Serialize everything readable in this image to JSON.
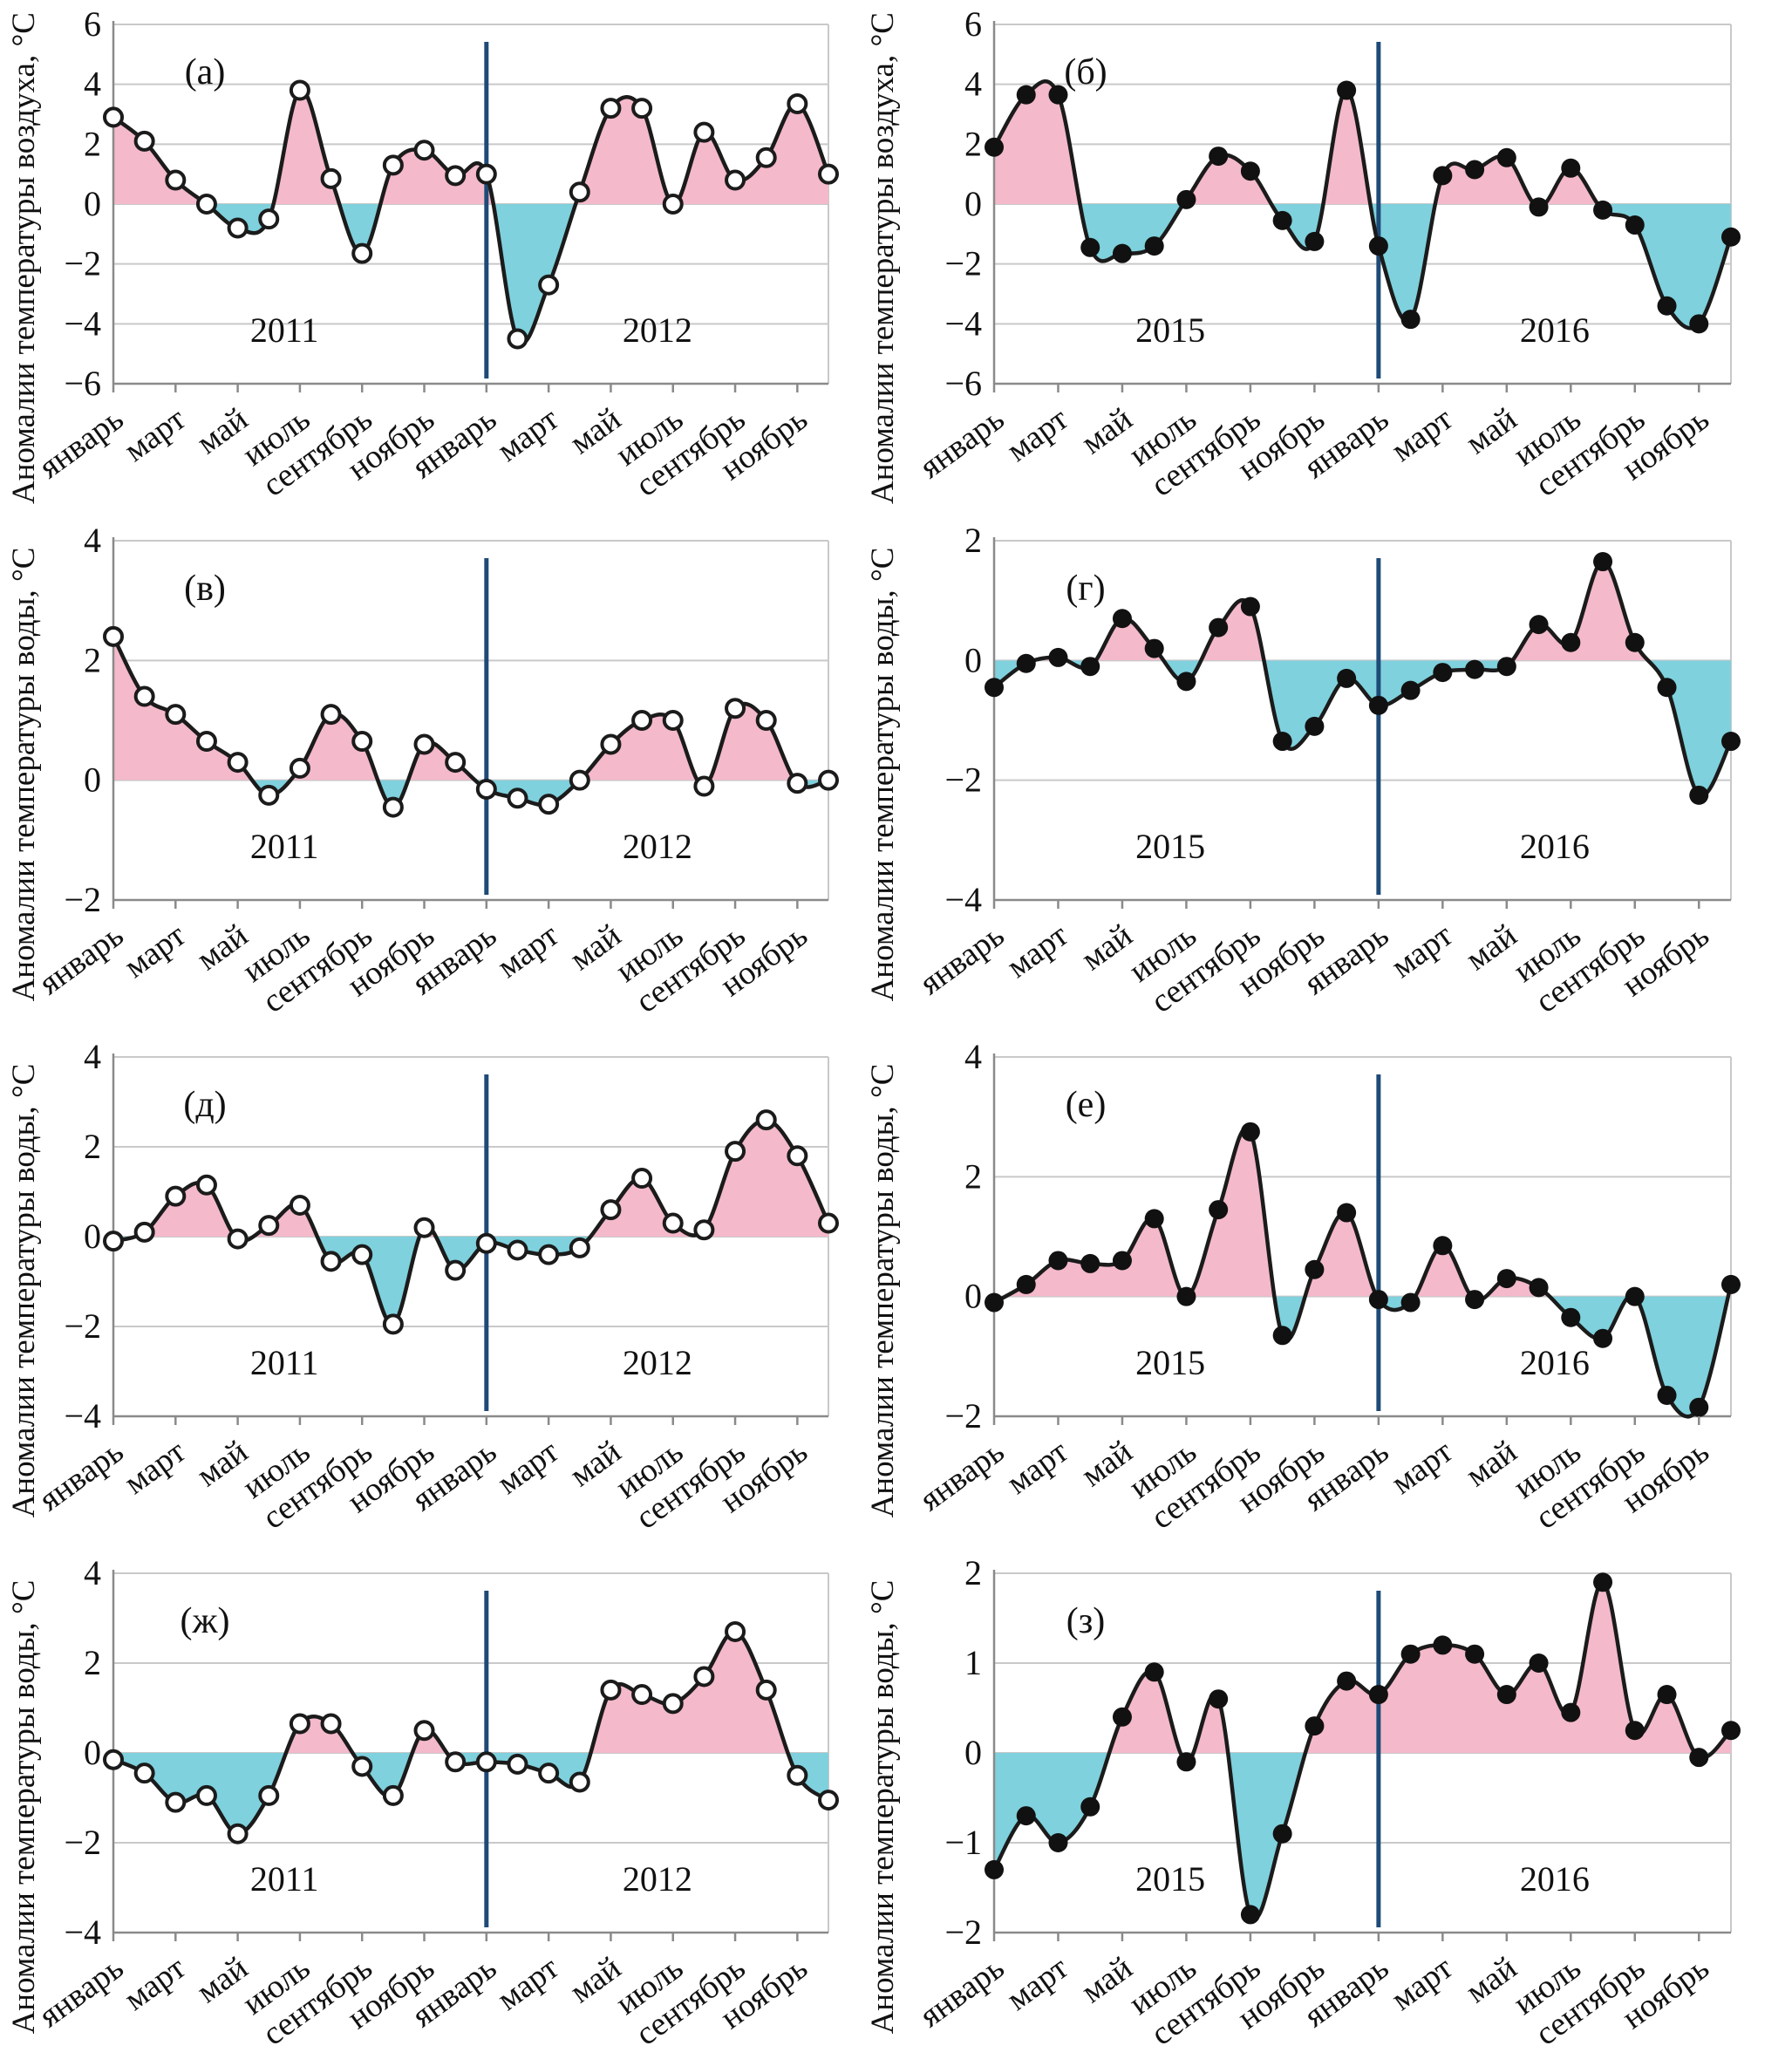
{
  "figure": {
    "background": "#ffffff",
    "colors": {
      "positive_fill": "#f4b9ca",
      "negative_fill": "#7ed1dd",
      "line": "#1b1b1b",
      "marker_open_fill": "#ffffff",
      "marker_filled": "#111111",
      "divider": "#1e4a77",
      "grid": "#c9c9c9",
      "axis": "#8a8a8a",
      "text": "#111111"
    }
  },
  "chart_data": [
    {
      "type": "area",
      "panel_label": "(а)",
      "ylabel": "Аномалии температуры воздуха, °С",
      "ylim": [
        -6,
        6
      ],
      "yticks": [
        6,
        4,
        2,
        0,
        -2,
        -4,
        -6
      ],
      "years": [
        "2011",
        "2012"
      ],
      "month_tick_labels": [
        "январь",
        "март",
        "май",
        "июль",
        "сентябрь",
        "ноябрь",
        "январь",
        "март",
        "май",
        "июль",
        "сентябрь",
        "ноябрь"
      ],
      "marker": "open",
      "grid": true,
      "values": [
        2.9,
        2.1,
        0.8,
        0.0,
        -0.8,
        -0.5,
        3.8,
        0.85,
        -1.65,
        1.3,
        1.8,
        0.95,
        1.0,
        -4.5,
        -2.7,
        0.4,
        3.2,
        3.2,
        0.0,
        2.4,
        0.8,
        1.55,
        3.35,
        1.0
      ]
    },
    {
      "type": "area",
      "panel_label": "(б)",
      "ylabel": "Аномалии температуры воздуха, °С",
      "ylim": [
        -6,
        6
      ],
      "yticks": [
        6,
        4,
        2,
        0,
        -2,
        -4,
        -6
      ],
      "years": [
        "2015",
        "2016"
      ],
      "month_tick_labels": [
        "январь",
        "март",
        "май",
        "июль",
        "сентябрь",
        "ноябрь",
        "январь",
        "март",
        "май",
        "июль",
        "сентябрь",
        "ноябрь"
      ],
      "marker": "filled",
      "grid": true,
      "values": [
        1.9,
        3.65,
        3.65,
        -1.45,
        -1.65,
        -1.4,
        0.15,
        1.6,
        1.1,
        -0.55,
        -1.25,
        3.8,
        -1.4,
        -3.85,
        0.95,
        1.15,
        1.55,
        -0.1,
        1.2,
        -0.2,
        -0.7,
        -3.4,
        -4.0,
        -1.1
      ]
    },
    {
      "type": "area",
      "panel_label": "(в)",
      "ylabel": "Аномалии температуры воды, °С",
      "ylim": [
        -2,
        4
      ],
      "yticks": [
        4,
        2,
        0,
        -2
      ],
      "years": [
        "2011",
        "2012"
      ],
      "month_tick_labels": [
        "январь",
        "март",
        "май",
        "июль",
        "сентябрь",
        "ноябрь",
        "январь",
        "март",
        "май",
        "июль",
        "сентябрь",
        "ноябрь"
      ],
      "marker": "open",
      "grid": true,
      "values": [
        2.4,
        1.4,
        1.1,
        0.65,
        0.3,
        -0.25,
        0.2,
        1.1,
        0.65,
        -0.45,
        0.6,
        0.3,
        -0.15,
        -0.3,
        -0.4,
        0.0,
        0.6,
        1.0,
        1.0,
        -0.1,
        1.2,
        1.0,
        -0.05,
        0.0
      ]
    },
    {
      "type": "area",
      "panel_label": "(г)",
      "ylabel": "Аномалии температуры воды, °С",
      "ylim": [
        -4,
        2
      ],
      "yticks": [
        2,
        0,
        -2,
        -4
      ],
      "years": [
        "2015",
        "2016"
      ],
      "month_tick_labels": [
        "январь",
        "март",
        "май",
        "июль",
        "сентябрь",
        "ноябрь",
        "январь",
        "март",
        "май",
        "июль",
        "сентябрь",
        "ноябрь"
      ],
      "marker": "filled",
      "grid": true,
      "values": [
        -0.45,
        -0.05,
        0.05,
        -0.1,
        0.7,
        0.2,
        -0.35,
        0.55,
        0.9,
        -1.35,
        -1.1,
        -0.3,
        -0.75,
        -0.5,
        -0.2,
        -0.15,
        -0.1,
        0.6,
        0.3,
        1.65,
        0.3,
        -0.45,
        -2.25,
        -1.35
      ]
    },
    {
      "type": "area",
      "panel_label": "(д)",
      "ylabel": "Аномалии температуры воды, °С",
      "ylim": [
        -4,
        4
      ],
      "yticks": [
        4,
        2,
        0,
        -2,
        -4
      ],
      "years": [
        "2011",
        "2012"
      ],
      "month_tick_labels": [
        "январь",
        "март",
        "май",
        "июль",
        "сентябрь",
        "ноябрь",
        "январь",
        "март",
        "май",
        "июль",
        "сентябрь",
        "ноябрь"
      ],
      "marker": "open",
      "grid": true,
      "values": [
        -0.1,
        0.1,
        0.9,
        1.15,
        -0.05,
        0.25,
        0.7,
        -0.55,
        -0.4,
        -1.95,
        0.2,
        -0.75,
        -0.15,
        -0.3,
        -0.4,
        -0.25,
        0.6,
        1.3,
        0.3,
        0.15,
        1.9,
        2.6,
        1.8,
        0.3
      ]
    },
    {
      "type": "area",
      "panel_label": "(е)",
      "ylabel": "Аномалии температуры воды, °С",
      "ylim": [
        -2,
        4
      ],
      "yticks": [
        4,
        2,
        0,
        -2
      ],
      "years": [
        "2015",
        "2016"
      ],
      "month_tick_labels": [
        "январь",
        "март",
        "май",
        "июль",
        "сентябрь",
        "ноябрь",
        "январь",
        "март",
        "май",
        "июль",
        "сентябрь",
        "ноябрь"
      ],
      "marker": "filled",
      "grid": true,
      "values": [
        -0.1,
        0.2,
        0.6,
        0.55,
        0.6,
        1.3,
        0.0,
        1.45,
        2.75,
        -0.65,
        0.45,
        1.4,
        -0.05,
        -0.1,
        0.85,
        -0.05,
        0.3,
        0.15,
        -0.35,
        -0.7,
        0.0,
        -1.65,
        -1.85,
        0.2
      ]
    },
    {
      "type": "area",
      "panel_label": "(ж)",
      "ylabel": "Аномалии температуры воды, °С",
      "ylim": [
        -4,
        4
      ],
      "yticks": [
        4,
        2,
        0,
        -2,
        -4
      ],
      "years": [
        "2011",
        "2012"
      ],
      "month_tick_labels": [
        "январь",
        "март",
        "май",
        "июль",
        "сентябрь",
        "ноябрь",
        "январь",
        "март",
        "май",
        "июль",
        "сентябрь",
        "ноябрь"
      ],
      "marker": "open",
      "grid": true,
      "values": [
        -0.15,
        -0.45,
        -1.1,
        -0.95,
        -1.8,
        -0.95,
        0.65,
        0.65,
        -0.3,
        -0.95,
        0.5,
        -0.2,
        -0.2,
        -0.25,
        -0.45,
        -0.65,
        1.4,
        1.3,
        1.1,
        1.7,
        2.7,
        1.4,
        -0.5,
        -1.05
      ]
    },
    {
      "type": "area",
      "panel_label": "(з)",
      "ylabel": "Аномалии температуры воды, °С",
      "ylim": [
        -2,
        2
      ],
      "yticks": [
        2,
        1,
        0,
        -1,
        -2
      ],
      "years": [
        "2015",
        "2016"
      ],
      "month_tick_labels": [
        "январь",
        "март",
        "май",
        "июль",
        "сентябрь",
        "ноябрь",
        "январь",
        "март",
        "май",
        "июль",
        "сентябрь",
        "ноябрь"
      ],
      "marker": "filled",
      "grid": true,
      "values": [
        -1.3,
        -0.7,
        -1.0,
        -0.6,
        0.4,
        0.9,
        -0.1,
        0.6,
        -1.8,
        -0.9,
        0.3,
        0.8,
        0.65,
        1.1,
        1.2,
        1.1,
        0.65,
        1.0,
        0.45,
        1.9,
        0.25,
        0.65,
        -0.05,
        0.25
      ]
    }
  ]
}
